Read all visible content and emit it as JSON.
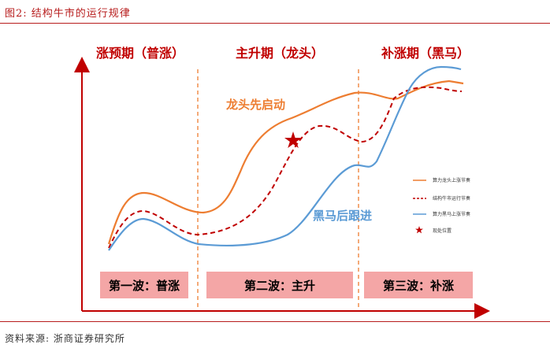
{
  "figure": {
    "title": "图2:  结构牛市的运行规律",
    "source": "资料来源:  浙商证券研究所"
  },
  "phases": [
    {
      "title": "涨预期（普涨）",
      "wave": "第一波：普涨"
    },
    {
      "title": "主升期（龙头）",
      "wave": "第二波：主升"
    },
    {
      "title": "补涨期（黑马）",
      "wave": "第三波：补涨"
    }
  ],
  "annotations": {
    "leader": "龙头先启动",
    "darkhorse": "黑马后跟进"
  },
  "legend": [
    {
      "label": "算力龙头上涨节奏",
      "color": "#ed7d31",
      "style": "solid"
    },
    {
      "label": "结构牛市运行节奏",
      "color": "#c00000",
      "style": "dashed"
    },
    {
      "label": "算力黑马上涨节奏",
      "color": "#5b9bd5",
      "style": "solid"
    },
    {
      "label": "现处位置",
      "color": "#c00000",
      "style": "star"
    }
  ],
  "colors": {
    "axis": "#c00000",
    "wave_box": "#f4a6a6",
    "divider": "#ed7d31"
  }
}
